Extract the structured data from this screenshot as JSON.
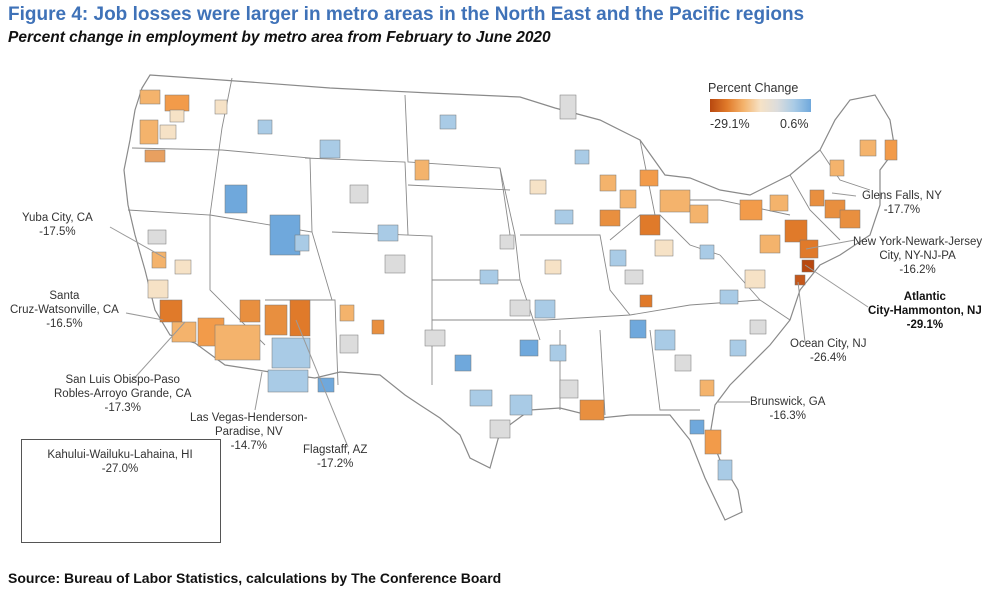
{
  "title": "Figure 4: Job losses were larger in metro areas in the North East and the Pacific regions",
  "subtitle": "Percent change in employment by metro area from February to June 2020",
  "source": "Source: Bureau of Labor Statistics, calculations by The Conference Board",
  "legend": {
    "title": "Percent Change",
    "min_label": "-29.1%",
    "max_label": "0.6%",
    "colors": {
      "low": "#b8480f",
      "mid": "#dcdcdc",
      "high": "#6fa8dc"
    }
  },
  "callouts": {
    "yuba": {
      "name": "Yuba City, CA",
      "value": "-17.5%"
    },
    "santa_l1": "Santa",
    "santa_l2": "Cruz-Watsonville, CA",
    "santa_val": "-16.5%",
    "slo_l1": "San Luis Obispo-Paso",
    "slo_l2": "Robles-Arroyo Grande, CA",
    "slo_val": "-17.3%",
    "lv_l1": "Las Vegas-Henderson-",
    "lv_l2": "Paradise, NV",
    "lv_val": "-14.7%",
    "flag": {
      "name": "Flagstaff, AZ",
      "value": "-17.2%"
    },
    "glens": {
      "name": "Glens Falls, NY",
      "value": "-17.7%"
    },
    "ny_l1": "New York-Newark-Jersey",
    "ny_l2": "City, NY-NJ-PA",
    "ny_val": "-16.2%",
    "ac_l1": "Atlantic",
    "ac_l2": "City-Hammonton, NJ",
    "ac_val": "-29.1%",
    "oc": {
      "name": "Ocean City, NJ",
      "value": "-26.4%"
    },
    "brun": {
      "name": "Brunswick, GA",
      "value": "-16.3%"
    },
    "hi": {
      "name": "Kahului-Wailuku-Lahaina, HI",
      "value": "-27.0%"
    }
  }
}
